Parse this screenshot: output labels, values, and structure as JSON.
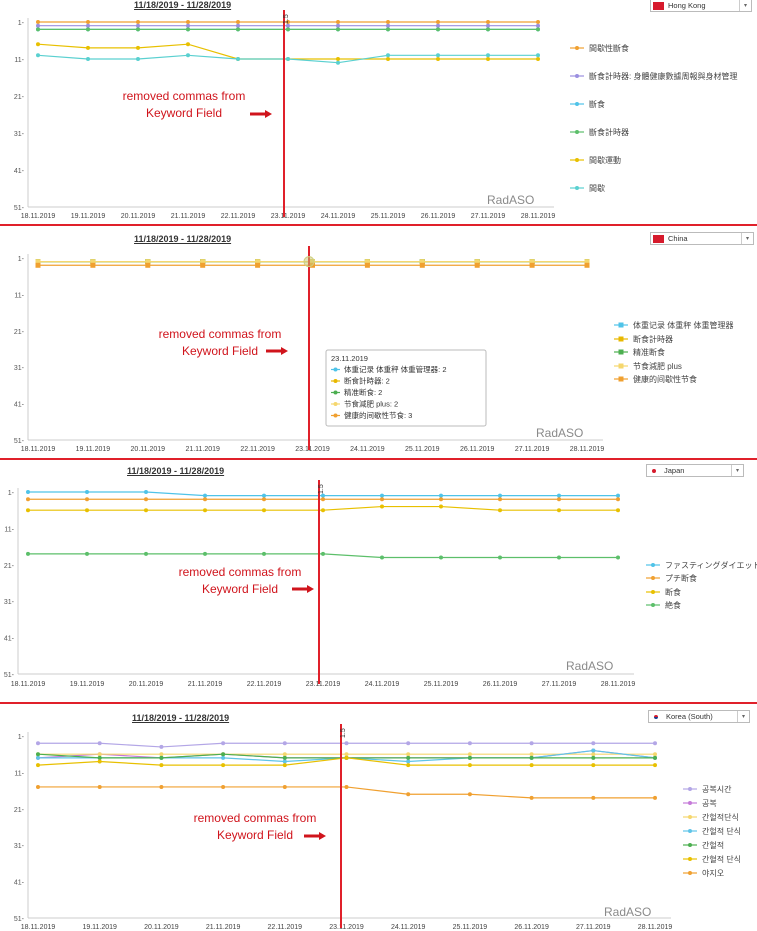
{
  "charts": [
    {
      "date_range": "11/18/2019 - 11/28/2019",
      "country": "Hong Kong",
      "country_flag_color": "#d61a2c",
      "annotation": [
        "removed commas from",
        "Keyword Field"
      ],
      "watermark": "RadASO",
      "marker_label": "1.5",
      "marker_date": "23.11.2019",
      "highlight_color": "#e0202a"
    },
    {
      "date_range": "11/18/2019 - 11/28/2019",
      "country": "China",
      "country_flag_color": "#d61a2c",
      "annotation": [
        "removed commas from",
        "Keyword Field"
      ],
      "watermark": "RadASO",
      "marker_date": "23.11.2019",
      "highlight_color": "#e0202a",
      "tooltip": {
        "title": "23.11.2019",
        "rows": [
          {
            "label": "体重记录 体重秤 体重管理器: 2",
            "color": "#4fc3e8"
          },
          {
            "label": "断食計時器: 2",
            "color": "#e8b800"
          },
          {
            "label": "精准断食: 2",
            "color": "#4caf50"
          },
          {
            "label": "节食減肥 plus: 2",
            "color": "#f5d76e"
          },
          {
            "label": "健康的间歇性节食: 3",
            "color": "#f0a030"
          }
        ]
      }
    },
    {
      "date_range": "11/18/2019 - 11/28/2019",
      "country": "Japan",
      "country_flag_color": "#d61a2c",
      "annotation": [
        "removed commas from",
        "Keyword Field"
      ],
      "watermark": "RadASO",
      "marker_label": "1.5",
      "marker_date": "23.11.2019",
      "highlight_color": "#e0202a"
    },
    {
      "date_range": "11/18/2019 - 11/28/2019",
      "country": "Korea (South)",
      "country_flag_color": "#1a3d8f",
      "annotation": [
        "removed commas from",
        "Keyword Field"
      ],
      "watermark": "RadASO",
      "marker_label": "1.5",
      "marker_date": "23.11.2019",
      "highlight_color": "#e0202a"
    }
  ],
  "chart_data": [
    {
      "type": "line",
      "x": [
        "18.11.2019",
        "19.11.2019",
        "20.11.2019",
        "21.11.2019",
        "22.11.2019",
        "23.11.2019",
        "24.11.2019",
        "25.11.2019",
        "26.11.2019",
        "27.11.2019",
        "28.11.2019"
      ],
      "yticks": [
        1,
        11,
        21,
        31,
        41,
        51
      ],
      "ylim": [
        1,
        51
      ],
      "y_inverted": true,
      "series": [
        {
          "name": "間歇性斷食",
          "color": "#f0a030",
          "values": [
            1,
            1,
            1,
            1,
            1,
            1,
            1,
            1,
            1,
            1,
            1
          ]
        },
        {
          "name": "斷食計時器: 身體健康數據周報與身材管理",
          "color": "#9b8fe0",
          "values": [
            2,
            2,
            2,
            2,
            2,
            2,
            2,
            2,
            2,
            2,
            2
          ]
        },
        {
          "name": "斷食",
          "color": "#4fc3e8",
          "values": [
            3,
            3,
            3,
            3,
            3,
            3,
            3,
            3,
            3,
            3,
            3
          ]
        },
        {
          "name": "斷食計時器",
          "color": "#5cbf6a",
          "values": [
            3,
            3,
            3,
            3,
            3,
            3,
            3,
            3,
            3,
            3,
            3
          ]
        },
        {
          "name": "間歇運動",
          "color": "#e8c000",
          "values": [
            7,
            8,
            8,
            7,
            11,
            11,
            11,
            11,
            11,
            11,
            11
          ]
        },
        {
          "name": "間歇",
          "color": "#5ad0d0",
          "values": [
            10,
            11,
            11,
            10,
            11,
            11,
            12,
            10,
            10,
            10,
            10
          ]
        }
      ]
    },
    {
      "type": "line",
      "x": [
        "18.11.2019",
        "19.11.2019",
        "20.11.2019",
        "21.11.2019",
        "22.11.2019",
        "23.11.2019",
        "24.11.2019",
        "25.11.2019",
        "26.11.2019",
        "27.11.2019",
        "28.11.2019"
      ],
      "yticks": [
        1,
        11,
        21,
        31,
        41,
        51
      ],
      "ylim": [
        1,
        51
      ],
      "y_inverted": true,
      "series": [
        {
          "name": "体重记录 体重秤 体重管理器",
          "color": "#4fc3e8",
          "values": [
            2,
            2,
            2,
            2,
            2,
            2,
            2,
            2,
            2,
            2,
            2
          ]
        },
        {
          "name": "断食計時器",
          "color": "#e8b800",
          "values": [
            2,
            2,
            2,
            2,
            2,
            2,
            2,
            2,
            2,
            2,
            2
          ]
        },
        {
          "name": "精准断食",
          "color": "#4caf50",
          "values": [
            2,
            2,
            2,
            2,
            2,
            2,
            2,
            2,
            2,
            2,
            2
          ]
        },
        {
          "name": "节食減肥 plus",
          "color": "#f5d76e",
          "values": [
            2,
            2,
            2,
            2,
            2,
            2,
            2,
            2,
            2,
            2,
            2
          ]
        },
        {
          "name": "健康的间歇性节食",
          "color": "#f0a030",
          "values": [
            3,
            3,
            3,
            3,
            3,
            3,
            3,
            3,
            3,
            3,
            3
          ]
        }
      ]
    },
    {
      "type": "line",
      "x": [
        "18.11.2019",
        "19.11.2019",
        "20.11.2019",
        "21.11.2019",
        "22.11.2019",
        "23.11.2019",
        "24.11.2019",
        "25.11.2019",
        "26.11.2019",
        "27.11.2019",
        "28.11.2019"
      ],
      "yticks": [
        1,
        11,
        21,
        31,
        41,
        51
      ],
      "ylim": [
        1,
        51
      ],
      "y_inverted": true,
      "series": [
        {
          "name": "ファスティングダイエット",
          "color": "#4fc3e8",
          "values": [
            1,
            1,
            1,
            2,
            2,
            2,
            2,
            2,
            2,
            2,
            2
          ]
        },
        {
          "name": "プチ断食",
          "color": "#f0a030",
          "values": [
            3,
            3,
            3,
            3,
            3,
            3,
            3,
            3,
            3,
            3,
            3
          ]
        },
        {
          "name": "断食",
          "color": "#e8c000",
          "values": [
            6,
            6,
            6,
            6,
            6,
            6,
            5,
            5,
            6,
            6,
            6
          ]
        },
        {
          "name": "絶食",
          "color": "#5cbf6a",
          "values": [
            18,
            18,
            18,
            18,
            18,
            18,
            19,
            19,
            19,
            19,
            19
          ]
        }
      ]
    },
    {
      "type": "line",
      "x": [
        "18.11.2019",
        "19.11.2019",
        "20.11.2019",
        "21.11.2019",
        "22.11.2019",
        "23.11.2019",
        "24.11.2019",
        "25.11.2019",
        "26.11.2019",
        "27.11.2019",
        "28.11.2019"
      ],
      "yticks": [
        1,
        11,
        21,
        31,
        41,
        51
      ],
      "ylim": [
        1,
        51
      ],
      "y_inverted": true,
      "series": [
        {
          "name": "공복시간",
          "color": "#b3a6e6",
          "values": [
            3,
            3,
            4,
            3,
            3,
            3,
            3,
            3,
            3,
            3,
            3
          ]
        },
        {
          "name": "공복",
          "color": "#c57ad8",
          "values": [
            7,
            6,
            7,
            6,
            7,
            7,
            7,
            7,
            7,
            5,
            7
          ]
        },
        {
          "name": "간헐적단식",
          "color": "#f5d76e",
          "values": [
            6,
            6,
            6,
            6,
            6,
            6,
            6,
            6,
            6,
            6,
            6
          ]
        },
        {
          "name": "간헐적 단식",
          "color": "#5fc4e8",
          "values": [
            7,
            7,
            7,
            7,
            8,
            7,
            8,
            7,
            7,
            5,
            7
          ]
        },
        {
          "name": "간헐적",
          "color": "#4caf50",
          "values": [
            6,
            7,
            7,
            6,
            7,
            7,
            7,
            7,
            7,
            7,
            7
          ]
        },
        {
          "name": "간혈적 단식",
          "color": "#e8c000",
          "values": [
            9,
            8,
            9,
            9,
            9,
            7,
            9,
            9,
            9,
            9,
            9
          ]
        },
        {
          "name": "야지오",
          "color": "#f0a030",
          "values": [
            15,
            15,
            15,
            15,
            15,
            15,
            17,
            17,
            18,
            18,
            18
          ]
        }
      ]
    }
  ]
}
